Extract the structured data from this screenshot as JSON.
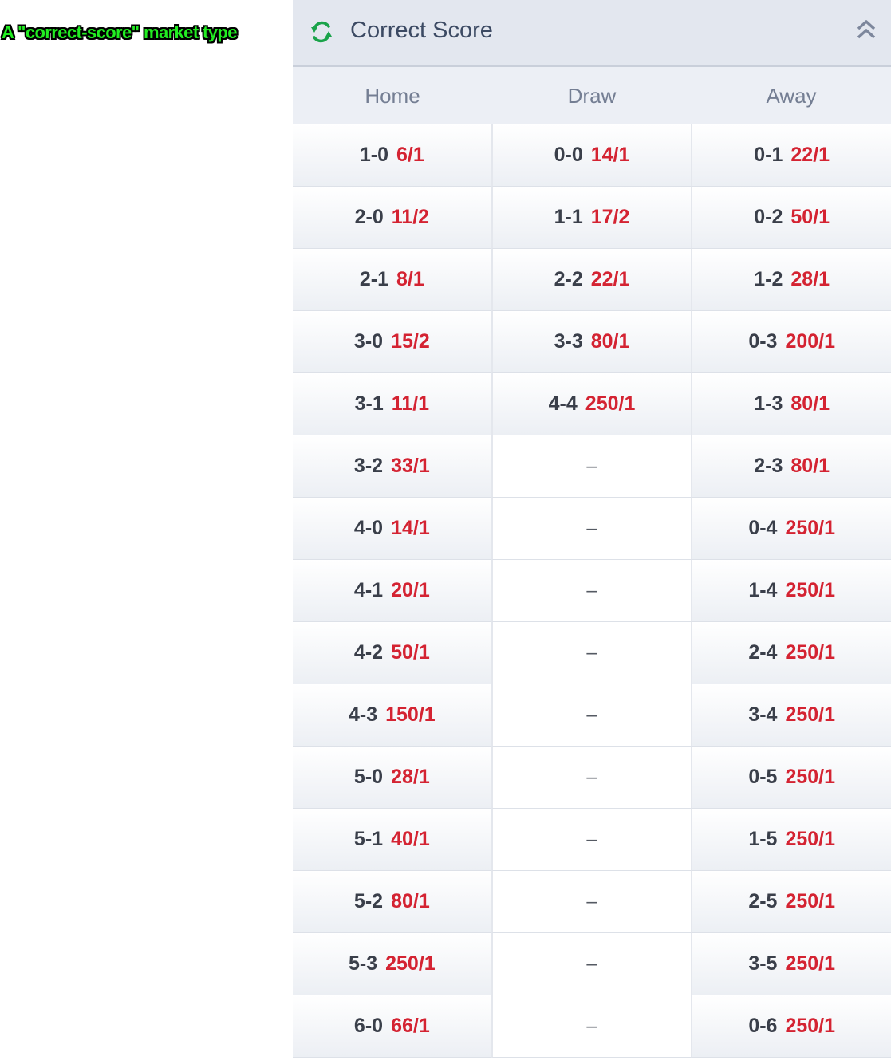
{
  "annotation": "A \"correct-score\" market type",
  "market": {
    "title": "Correct Score",
    "icons": {
      "refresh": "refresh-icon",
      "collapse": "double-chevron-up-icon"
    },
    "columns": [
      "Home",
      "Draw",
      "Away"
    ],
    "rows": [
      {
        "home": {
          "score": "1-0",
          "odds": "6/1"
        },
        "draw": {
          "score": "0-0",
          "odds": "14/1"
        },
        "away": {
          "score": "0-1",
          "odds": "22/1"
        }
      },
      {
        "home": {
          "score": "2-0",
          "odds": "11/2"
        },
        "draw": {
          "score": "1-1",
          "odds": "17/2"
        },
        "away": {
          "score": "0-2",
          "odds": "50/1"
        }
      },
      {
        "home": {
          "score": "2-1",
          "odds": "8/1"
        },
        "draw": {
          "score": "2-2",
          "odds": "22/1"
        },
        "away": {
          "score": "1-2",
          "odds": "28/1"
        }
      },
      {
        "home": {
          "score": "3-0",
          "odds": "15/2"
        },
        "draw": {
          "score": "3-3",
          "odds": "80/1"
        },
        "away": {
          "score": "0-3",
          "odds": "200/1"
        }
      },
      {
        "home": {
          "score": "3-1",
          "odds": "11/1"
        },
        "draw": {
          "score": "4-4",
          "odds": "250/1"
        },
        "away": {
          "score": "1-3",
          "odds": "80/1"
        }
      },
      {
        "home": {
          "score": "3-2",
          "odds": "33/1"
        },
        "draw": null,
        "away": {
          "score": "2-3",
          "odds": "80/1"
        }
      },
      {
        "home": {
          "score": "4-0",
          "odds": "14/1"
        },
        "draw": null,
        "away": {
          "score": "0-4",
          "odds": "250/1"
        }
      },
      {
        "home": {
          "score": "4-1",
          "odds": "20/1"
        },
        "draw": null,
        "away": {
          "score": "1-4",
          "odds": "250/1"
        }
      },
      {
        "home": {
          "score": "4-2",
          "odds": "50/1"
        },
        "draw": null,
        "away": {
          "score": "2-4",
          "odds": "250/1"
        }
      },
      {
        "home": {
          "score": "4-3",
          "odds": "150/1"
        },
        "draw": null,
        "away": {
          "score": "3-4",
          "odds": "250/1"
        }
      },
      {
        "home": {
          "score": "5-0",
          "odds": "28/1"
        },
        "draw": null,
        "away": {
          "score": "0-5",
          "odds": "250/1"
        }
      },
      {
        "home": {
          "score": "5-1",
          "odds": "40/1"
        },
        "draw": null,
        "away": {
          "score": "1-5",
          "odds": "250/1"
        }
      },
      {
        "home": {
          "score": "5-2",
          "odds": "80/1"
        },
        "draw": null,
        "away": {
          "score": "2-5",
          "odds": "250/1"
        }
      },
      {
        "home": {
          "score": "5-3",
          "odds": "250/1"
        },
        "draw": null,
        "away": {
          "score": "3-5",
          "odds": "250/1"
        }
      },
      {
        "home": {
          "score": "6-0",
          "odds": "66/1"
        },
        "draw": null,
        "away": {
          "score": "0-6",
          "odds": "250/1"
        }
      }
    ],
    "empty_placeholder": "–"
  },
  "colors": {
    "header_bg": "#e3e7ef",
    "title_text": "#3c4a63",
    "odds_red": "#d42332",
    "refresh_green": "#1aa34a",
    "annotation_green": "#22ee22"
  }
}
